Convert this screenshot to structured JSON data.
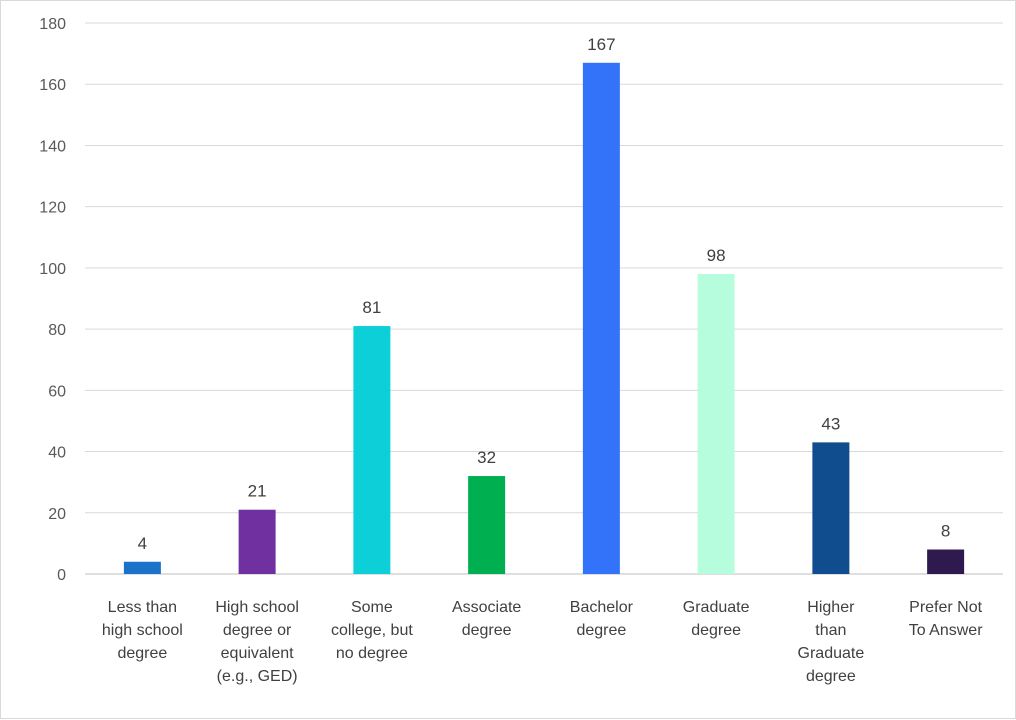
{
  "chart_data": {
    "type": "bar",
    "categories": [
      "Less than high school degree",
      "High school degree or equivalent (e.g., GED)",
      "Some college, but no degree",
      "Associate degree",
      "Bachelor degree",
      "Graduate degree",
      "Higher than Graduate degree",
      "Prefer Not To Answer"
    ],
    "category_lines": [
      [
        "Less than",
        "high school",
        "degree"
      ],
      [
        "High school",
        "degree or",
        "equivalent",
        "(e.g., GED)"
      ],
      [
        "Some",
        "college, but",
        "no degree"
      ],
      [
        "Associate",
        "degree"
      ],
      [
        "Bachelor",
        "degree"
      ],
      [
        "Graduate",
        "degree"
      ],
      [
        "Higher",
        "than",
        "Graduate",
        "degree"
      ],
      [
        "Prefer Not",
        "To Answer"
      ]
    ],
    "values": [
      4,
      21,
      81,
      32,
      167,
      98,
      43,
      8
    ],
    "bar_colors": [
      "#1a73c9",
      "#7030a0",
      "#0ccfd8",
      "#00b050",
      "#3273fa",
      "#b6fdde",
      "#0f4d8f",
      "#2e1a4f"
    ],
    "yticks": [
      0,
      20,
      40,
      60,
      80,
      100,
      120,
      140,
      160,
      180
    ],
    "ylim": [
      0,
      180
    ],
    "grid": true,
    "title": "",
    "xlabel": "",
    "ylabel": ""
  }
}
